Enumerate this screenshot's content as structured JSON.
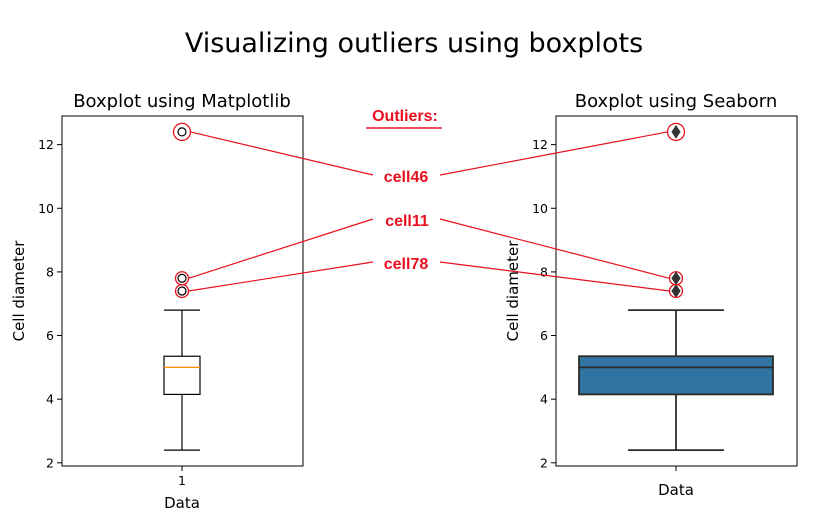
{
  "suptitle": "Visualizing outliers using boxplots",
  "annotation": {
    "header": "Outliers:",
    "color": "#e8101e",
    "labels": [
      "cell46",
      "cell11",
      "cell78"
    ],
    "label_values": [
      12.4,
      7.8,
      7.4
    ]
  },
  "chart_data": [
    {
      "type": "boxplot",
      "title": "Boxplot using Matplotlib",
      "xlabel": "Data",
      "ylabel": "Cell  diameter",
      "categories": [
        "1"
      ],
      "ylim": [
        1.9,
        12.9
      ],
      "yticks": [
        2,
        4,
        6,
        8,
        10,
        12
      ],
      "box": {
        "whisker_low": 2.4,
        "q1": 4.15,
        "median": 5.0,
        "q3": 5.35,
        "whisker_high": 6.8
      },
      "outliers": [
        12.4,
        7.8,
        7.4
      ],
      "style": {
        "box_fill": "#ffffff",
        "median_color": "#ff8c00",
        "line_color": "#000000"
      }
    },
    {
      "type": "boxplot",
      "title": "Boxplot using Seaborn",
      "xlabel": "Data",
      "ylabel": "Cell  diameter",
      "categories": [
        ""
      ],
      "ylim": [
        1.9,
        12.9
      ],
      "yticks": [
        2,
        4,
        6,
        8,
        10,
        12
      ],
      "box": {
        "whisker_low": 2.4,
        "q1": 4.15,
        "median": 5.0,
        "q3": 5.35,
        "whisker_high": 6.8
      },
      "outliers": [
        12.4,
        7.8,
        7.4
      ],
      "style": {
        "box_fill": "#3274a1",
        "median_color": "#2b2b2b",
        "line_color": "#2b2b2b"
      }
    }
  ]
}
